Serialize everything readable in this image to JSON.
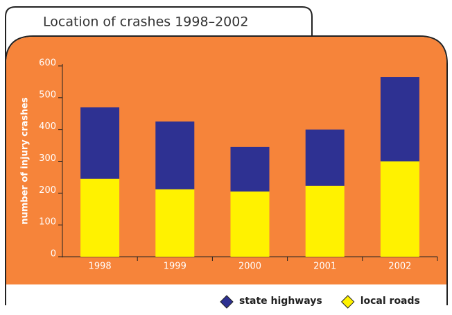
{
  "chart_data": {
    "type": "stacked-bar",
    "title": "Location of crashes 1998–2002",
    "y_label": "number of injury crashes",
    "categories": [
      "1998",
      "1999",
      "2000",
      "2001",
      "2002"
    ],
    "series": [
      {
        "name": "local roads",
        "color": "#fff200",
        "values": [
          245,
          212,
          205,
          223,
          300
        ]
      },
      {
        "name": "state highways",
        "color": "#2e3192",
        "values": [
          225,
          213,
          140,
          177,
          265
        ]
      }
    ],
    "ylim": [
      0,
      600
    ],
    "yticks": [
      0,
      100,
      200,
      300,
      400,
      500,
      600
    ]
  }
}
